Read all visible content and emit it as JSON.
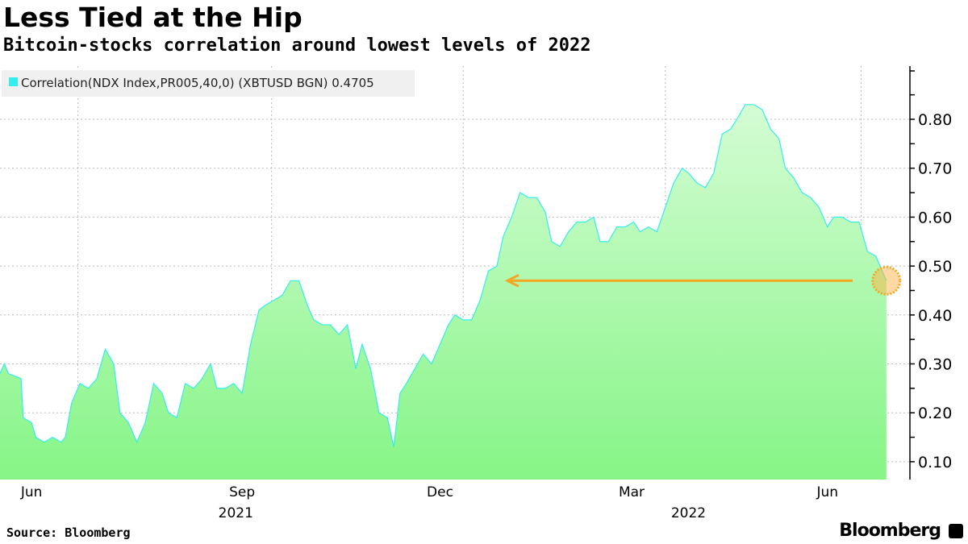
{
  "title": "Less Tied at the Hip",
  "subtitle": "Bitcoin-stocks correlation around lowest levels of 2022",
  "source": "Source: Bloomberg",
  "brand": "Bloomberg",
  "chart_data": {
    "type": "area",
    "title": "Less Tied at the Hip",
    "subtitle": "Bitcoin-stocks correlation around lowest levels of 2022",
    "legend": {
      "label": "Correlation(NDX Index,PR005,40,0) (XBTUSD BGN) 0.4705",
      "position": "top-left",
      "color": "#33eeee"
    },
    "x_unit": "days since 2021-05-25",
    "series": [
      {
        "name": "Correlation(NDX Index,PR005,40,0) (XBTUSD BGN)",
        "points": [
          [
            0,
            0.28
          ],
          [
            2,
            0.3
          ],
          [
            4,
            0.28
          ],
          [
            10,
            0.27
          ],
          [
            11,
            0.19
          ],
          [
            15,
            0.18
          ],
          [
            17,
            0.15
          ],
          [
            21,
            0.14
          ],
          [
            25,
            0.15
          ],
          [
            29,
            0.14
          ],
          [
            31,
            0.15
          ],
          [
            34,
            0.22
          ],
          [
            38,
            0.26
          ],
          [
            42,
            0.25
          ],
          [
            46,
            0.27
          ],
          [
            50,
            0.33
          ],
          [
            54,
            0.3
          ],
          [
            57,
            0.2
          ],
          [
            61,
            0.18
          ],
          [
            65,
            0.14
          ],
          [
            69,
            0.18
          ],
          [
            73,
            0.26
          ],
          [
            77,
            0.24
          ],
          [
            80,
            0.2
          ],
          [
            84,
            0.19
          ],
          [
            88,
            0.26
          ],
          [
            92,
            0.25
          ],
          [
            96,
            0.27
          ],
          [
            100,
            0.3
          ],
          [
            103,
            0.25
          ],
          [
            107,
            0.25
          ],
          [
            111,
            0.26
          ],
          [
            115,
            0.24
          ],
          [
            119,
            0.34
          ],
          [
            123,
            0.41
          ],
          [
            126,
            0.42
          ],
          [
            130,
            0.43
          ],
          [
            134,
            0.44
          ],
          [
            138,
            0.47
          ],
          [
            142,
            0.47
          ],
          [
            146,
            0.42
          ],
          [
            149,
            0.39
          ],
          [
            153,
            0.38
          ],
          [
            157,
            0.38
          ],
          [
            161,
            0.36
          ],
          [
            165,
            0.38
          ],
          [
            169,
            0.29
          ],
          [
            172,
            0.34
          ],
          [
            176,
            0.29
          ],
          [
            180,
            0.2
          ],
          [
            184,
            0.19
          ],
          [
            187,
            0.13
          ],
          [
            190,
            0.24
          ],
          [
            193,
            0.26
          ],
          [
            197,
            0.29
          ],
          [
            201,
            0.32
          ],
          [
            205,
            0.3
          ],
          [
            209,
            0.34
          ],
          [
            213,
            0.38
          ],
          [
            216,
            0.4
          ],
          [
            220,
            0.39
          ],
          [
            224,
            0.39
          ],
          [
            228,
            0.43
          ],
          [
            232,
            0.49
          ],
          [
            236,
            0.5
          ],
          [
            239,
            0.56
          ],
          [
            243,
            0.6
          ],
          [
            247,
            0.65
          ],
          [
            251,
            0.64
          ],
          [
            255,
            0.64
          ],
          [
            259,
            0.61
          ],
          [
            262,
            0.55
          ],
          [
            266,
            0.54
          ],
          [
            270,
            0.57
          ],
          [
            274,
            0.59
          ],
          [
            278,
            0.59
          ],
          [
            282,
            0.6
          ],
          [
            285,
            0.55
          ],
          [
            289,
            0.55
          ],
          [
            293,
            0.58
          ],
          [
            297,
            0.58
          ],
          [
            301,
            0.59
          ],
          [
            304,
            0.57
          ],
          [
            308,
            0.58
          ],
          [
            312,
            0.57
          ],
          [
            316,
            0.62
          ],
          [
            320,
            0.67
          ],
          [
            324,
            0.7
          ],
          [
            327,
            0.69
          ],
          [
            331,
            0.67
          ],
          [
            335,
            0.66
          ],
          [
            339,
            0.69
          ],
          [
            343,
            0.77
          ],
          [
            347,
            0.78
          ],
          [
            350,
            0.8
          ],
          [
            354,
            0.83
          ],
          [
            358,
            0.83
          ],
          [
            362,
            0.82
          ],
          [
            366,
            0.78
          ],
          [
            370,
            0.76
          ],
          [
            373,
            0.7
          ],
          [
            377,
            0.68
          ],
          [
            381,
            0.65
          ],
          [
            385,
            0.64
          ],
          [
            389,
            0.62
          ],
          [
            393,
            0.58
          ],
          [
            396,
            0.6
          ],
          [
            400,
            0.6
          ],
          [
            404,
            0.59
          ],
          [
            408,
            0.59
          ],
          [
            412,
            0.53
          ],
          [
            416,
            0.52
          ],
          [
            419,
            0.49
          ],
          [
            421,
            0.4705
          ]
        ]
      }
    ],
    "y_ticks": [
      "0.10",
      "0.20",
      "0.30",
      "0.40",
      "0.50",
      "0.60",
      "0.70",
      "0.80"
    ],
    "ylim": [
      0.064,
      0.9
    ],
    "x_ticks": [
      {
        "label": "Jun",
        "day": 15
      },
      {
        "label": "Sep",
        "day": 115
      },
      {
        "label": "Dec",
        "day": 209
      },
      {
        "label": "Mar",
        "day": 300
      },
      {
        "label": "Jun",
        "day": 393
      }
    ],
    "x_year_labels": [
      {
        "label": "2021",
        "day": 112
      },
      {
        "label": "2022",
        "day": 327
      }
    ],
    "x_gridlines_days": [
      37,
      129,
      220,
      316,
      409
    ],
    "annotation": {
      "type": "arrow",
      "from_day": 405,
      "to_day": 241,
      "value": 0.47,
      "highlight_day": 421,
      "color": "#f5a623"
    },
    "grid": true
  }
}
